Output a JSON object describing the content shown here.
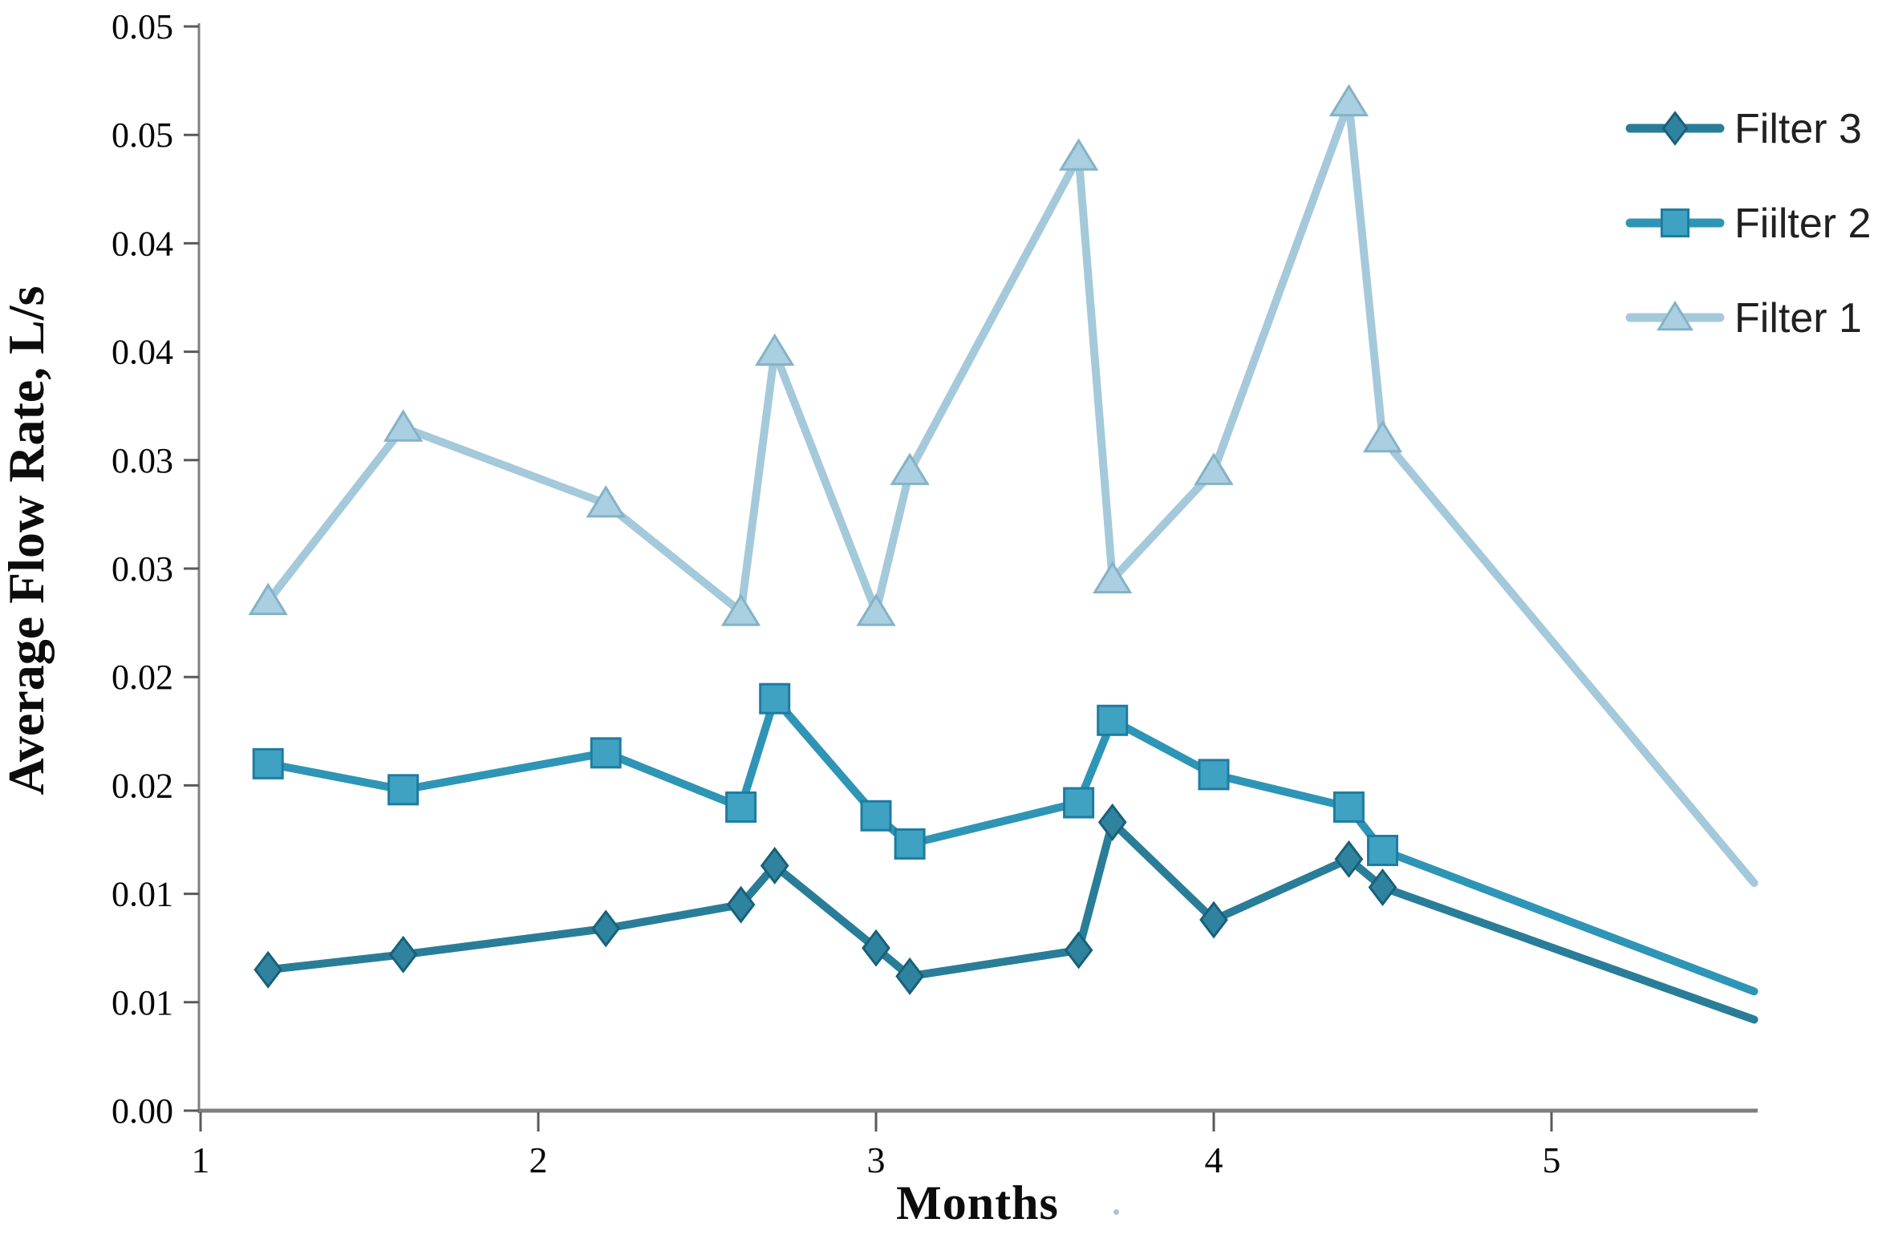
{
  "chart_data": {
    "type": "line",
    "title": "",
    "xlabel": "Months",
    "ylabel": "Average Flow Rate, L/s",
    "xlim": [
      1,
      5.6
    ],
    "ylim": [
      0,
      0.05
    ],
    "grid": false,
    "legend_position": "right-top",
    "background": "#ffffff",
    "x_ticks": [
      {
        "value": 1,
        "label": "1"
      },
      {
        "value": 2,
        "label": "2"
      },
      {
        "value": 3,
        "label": "3"
      },
      {
        "value": 4,
        "label": "4"
      },
      {
        "value": 5,
        "label": "5"
      }
    ],
    "y_ticks": [
      {
        "value": 0.05,
        "label": "0.05"
      },
      {
        "value": 0.045,
        "label": "0.05"
      },
      {
        "value": 0.04,
        "label": "0.04"
      },
      {
        "value": 0.035,
        "label": "0.04"
      },
      {
        "value": 0.03,
        "label": "0.03"
      },
      {
        "value": 0.025,
        "label": "0.03"
      },
      {
        "value": 0.02,
        "label": "0.02"
      },
      {
        "value": 0.015,
        "label": "0.02"
      },
      {
        "value": 0.01,
        "label": "0.01"
      },
      {
        "value": 0.005,
        "label": "0.01"
      },
      {
        "value": 0,
        "label": "0.00"
      }
    ],
    "series": [
      {
        "id": "filter1",
        "name": "Filter 1",
        "marker": "triangle",
        "line_color": "#a4c9da",
        "marker_fill": "#a9cfe0",
        "marker_stroke": "#84b2c7",
        "end_marker": false,
        "points": [
          [
            1.2,
            0.0235
          ],
          [
            1.6,
            0.0315
          ],
          [
            2.2,
            0.028
          ],
          [
            2.6,
            0.023
          ],
          [
            2.7,
            0.035
          ],
          [
            3.0,
            0.023
          ],
          [
            3.1,
            0.0295
          ],
          [
            3.6,
            0.044
          ],
          [
            3.7,
            0.0245
          ],
          [
            4.0,
            0.0295
          ],
          [
            4.4,
            0.0465
          ],
          [
            4.5,
            0.031
          ],
          [
            5.6,
            0.0105
          ]
        ]
      },
      {
        "id": "filter2",
        "name": "Fiilter 2",
        "marker": "square",
        "line_color": "#2e95b6",
        "marker_fill": "#3fa2c2",
        "marker_stroke": "#1e7ca0",
        "end_marker": false,
        "points": [
          [
            1.2,
            0.016
          ],
          [
            1.6,
            0.0148
          ],
          [
            2.2,
            0.0165
          ],
          [
            2.6,
            0.014
          ],
          [
            2.7,
            0.019
          ],
          [
            3.0,
            0.0136
          ],
          [
            3.1,
            0.0123
          ],
          [
            3.6,
            0.0142
          ],
          [
            3.7,
            0.018
          ],
          [
            4.0,
            0.0155
          ],
          [
            4.4,
            0.014
          ],
          [
            4.5,
            0.012
          ],
          [
            5.6,
            0.0055
          ]
        ]
      },
      {
        "id": "filter3",
        "name": "Filter 3",
        "marker": "diamond",
        "line_color": "#2a7d98",
        "marker_fill": "#30839e",
        "marker_stroke": "#18607a",
        "end_marker": false,
        "points": [
          [
            1.2,
            0.0065
          ],
          [
            1.6,
            0.0072
          ],
          [
            2.2,
            0.0084
          ],
          [
            2.6,
            0.0095
          ],
          [
            2.7,
            0.0113
          ],
          [
            3.0,
            0.0075
          ],
          [
            3.1,
            0.0062
          ],
          [
            3.6,
            0.0074
          ],
          [
            3.7,
            0.0133
          ],
          [
            4.0,
            0.0088
          ],
          [
            4.4,
            0.0116
          ],
          [
            4.5,
            0.0103
          ],
          [
            5.6,
            0.0042
          ]
        ]
      }
    ],
    "legend": [
      {
        "label": "Filter 3",
        "series": "filter3"
      },
      {
        "label": "Fiilter 2",
        "series": "filter2"
      },
      {
        "label": "Filter 1",
        "series": "filter1"
      }
    ]
  },
  "colors": {
    "axis_line": "#7f7f7f",
    "tick_mark": "#595959",
    "tick_label": "#050505",
    "legend_text": "#212121"
  },
  "decorations": {
    "stray_dot_after_xlabel": true
  }
}
